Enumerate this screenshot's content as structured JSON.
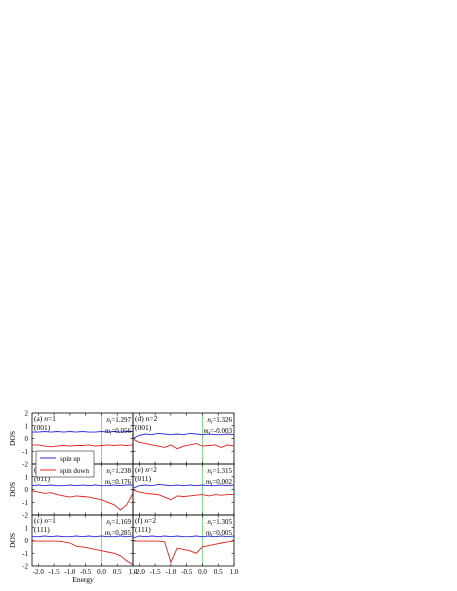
{
  "chart_data": [
    {
      "type": "line",
      "panel": "a",
      "title": "(a) n=1",
      "subtitle": "(001)",
      "annotations": [
        "n_t=1.297",
        "m_t=0.056"
      ],
      "xlabel": "",
      "ylabel": "DOS",
      "xlim": [
        -2.2,
        1.0
      ],
      "ylim": [
        -2,
        2
      ],
      "series": [
        {
          "name": "spin up",
          "x": [
            -2.2,
            -2.0,
            -1.8,
            -1.6,
            -1.4,
            -1.2,
            -1.0,
            -0.8,
            -0.6,
            -0.4,
            -0.2,
            0.0,
            0.2,
            0.4,
            0.6,
            0.8,
            1.0
          ],
          "y": [
            0.5,
            0.5,
            0.55,
            0.5,
            0.55,
            0.5,
            0.55,
            0.5,
            0.55,
            0.5,
            0.5,
            0.55,
            0.5,
            0.55,
            0.5,
            0.55,
            0.55
          ]
        },
        {
          "name": "spin down",
          "x": [
            -2.2,
            -2.0,
            -1.8,
            -1.6,
            -1.4,
            -1.2,
            -1.0,
            -0.8,
            -0.6,
            -0.4,
            -0.2,
            0.0,
            0.2,
            0.4,
            0.6,
            0.8,
            1.0
          ],
          "y": [
            -0.5,
            -0.5,
            -0.6,
            -0.65,
            -0.6,
            -0.55,
            -0.6,
            -0.55,
            -0.55,
            -0.5,
            -0.6,
            -0.55,
            -0.5,
            -0.55,
            -0.5,
            -0.55,
            -0.5
          ]
        }
      ]
    },
    {
      "type": "line",
      "panel": "b",
      "title": "(b) n=1",
      "subtitle": "(011)",
      "annotations": [
        "n_t=1.238",
        "m_t=0.176"
      ],
      "xlabel": "",
      "ylabel": "DOS",
      "xlim": [
        -2.2,
        1.0
      ],
      "ylim": [
        -2,
        2
      ],
      "series": [
        {
          "name": "spin up",
          "x": [
            -2.2,
            -2.0,
            -1.8,
            -1.6,
            -1.4,
            -1.2,
            -1.0,
            -0.8,
            -0.6,
            -0.4,
            -0.2,
            0.0,
            0.2,
            0.4,
            0.6,
            0.8,
            1.0
          ],
          "y": [
            0.3,
            0.35,
            0.3,
            0.35,
            0.3,
            0.3,
            0.35,
            0.3,
            0.35,
            0.3,
            0.35,
            0.3,
            0.3,
            0.35,
            0.3,
            0.35,
            0.35
          ]
        },
        {
          "name": "spin down",
          "x": [
            -2.2,
            -2.0,
            -1.8,
            -1.6,
            -1.4,
            -1.2,
            -1.0,
            -0.8,
            -0.6,
            -0.4,
            -0.2,
            0.0,
            0.2,
            0.4,
            0.6,
            0.8,
            1.0
          ],
          "y": [
            -0.1,
            -0.2,
            -0.3,
            -0.25,
            -0.4,
            -0.5,
            -0.6,
            -0.5,
            -0.55,
            -0.6,
            -0.7,
            -0.8,
            -1.0,
            -1.2,
            -1.6,
            -1.2,
            -0.3
          ]
        }
      ]
    },
    {
      "type": "line",
      "panel": "c",
      "title": "(c) n=1",
      "subtitle": "(111)",
      "annotations": [
        "n_t=1.169",
        "m_t=0.285"
      ],
      "xlabel": "Energy",
      "ylabel": "DOS",
      "xlim": [
        -2.2,
        1.0
      ],
      "ylim": [
        -2,
        2
      ],
      "series": [
        {
          "name": "spin up",
          "x": [
            -2.2,
            -2.0,
            -1.8,
            -1.6,
            -1.4,
            -1.2,
            -1.0,
            -0.8,
            -0.6,
            -0.4,
            -0.2,
            0.0,
            0.2,
            0.4,
            0.6,
            0.8,
            1.0
          ],
          "y": [
            0.3,
            0.3,
            0.35,
            0.3,
            0.35,
            0.3,
            0.3,
            0.35,
            0.3,
            0.35,
            0.3,
            0.35,
            0.3,
            0.3,
            0.35,
            0.3,
            0.35
          ]
        },
        {
          "name": "spin down",
          "x": [
            -2.2,
            -2.0,
            -1.8,
            -1.6,
            -1.4,
            -1.2,
            -1.0,
            -0.8,
            -0.6,
            -0.4,
            -0.2,
            0.0,
            0.2,
            0.4,
            0.6,
            0.8,
            1.0
          ],
          "y": [
            -0.05,
            -0.05,
            -0.05,
            -0.05,
            -0.05,
            -0.1,
            -0.2,
            -0.45,
            -0.5,
            -0.6,
            -0.7,
            -0.8,
            -0.9,
            -1.0,
            -1.2,
            -1.6,
            -1.9
          ]
        }
      ]
    },
    {
      "type": "line",
      "panel": "d",
      "title": "(d) n=2",
      "subtitle": "(001)",
      "annotations": [
        "n_t=1.326",
        "m_t=-0.003"
      ],
      "xlabel": "",
      "ylabel": "",
      "xlim": [
        -2.2,
        1.0
      ],
      "ylim": [
        -2,
        2
      ],
      "series": [
        {
          "name": "spin up",
          "x": [
            -2.2,
            -2.0,
            -1.8,
            -1.6,
            -1.4,
            -1.2,
            -1.0,
            -0.8,
            -0.6,
            -0.4,
            -0.2,
            0.0,
            0.2,
            0.4,
            0.6,
            0.8,
            1.0
          ],
          "y": [
            0.0,
            0.25,
            0.35,
            0.3,
            0.4,
            0.35,
            0.3,
            0.35,
            0.3,
            0.4,
            0.35,
            0.3,
            0.35,
            0.3,
            0.3,
            0.35,
            0.3
          ]
        },
        {
          "name": "spin down",
          "x": [
            -2.2,
            -2.0,
            -1.8,
            -1.6,
            -1.4,
            -1.2,
            -1.0,
            -0.8,
            -0.6,
            -0.4,
            -0.2,
            0.0,
            0.2,
            0.4,
            0.6,
            0.8,
            1.0
          ],
          "y": [
            -0.05,
            -0.3,
            -0.4,
            -0.5,
            -0.6,
            -0.7,
            -0.5,
            -0.8,
            -0.6,
            -0.5,
            -0.4,
            -0.6,
            -0.55,
            -0.5,
            -0.7,
            -0.5,
            -0.6
          ]
        }
      ]
    },
    {
      "type": "line",
      "panel": "e",
      "title": "(e) n=2",
      "subtitle": "(011)",
      "annotations": [
        "n_t=1.315",
        "m_t=0.002"
      ],
      "xlabel": "",
      "ylabel": "",
      "xlim": [
        -2.2,
        1.0
      ],
      "ylim": [
        -2,
        2
      ],
      "series": [
        {
          "name": "spin up",
          "x": [
            -2.2,
            -2.0,
            -1.8,
            -1.6,
            -1.4,
            -1.2,
            -1.0,
            -0.8,
            -0.6,
            -0.4,
            -0.2,
            0.0,
            0.2,
            0.4,
            0.6,
            0.8,
            1.0
          ],
          "y": [
            0.1,
            0.3,
            0.35,
            0.3,
            0.4,
            0.35,
            0.3,
            0.35,
            0.3,
            0.35,
            0.3,
            0.35,
            0.3,
            0.3,
            0.35,
            0.3,
            0.35
          ]
        },
        {
          "name": "spin down",
          "x": [
            -2.2,
            -2.0,
            -1.8,
            -1.6,
            -1.4,
            -1.2,
            -1.0,
            -0.8,
            -0.6,
            -0.4,
            -0.2,
            0.0,
            0.2,
            0.4,
            0.6,
            0.8,
            1.0
          ],
          "y": [
            -0.05,
            -0.2,
            -0.3,
            -0.35,
            -0.4,
            -0.6,
            -0.8,
            -0.5,
            -0.55,
            -0.5,
            -0.45,
            -0.4,
            -0.5,
            -0.4,
            -0.45,
            -0.4,
            -0.4
          ]
        }
      ]
    },
    {
      "type": "line",
      "panel": "f",
      "title": "(f) n=2",
      "subtitle": "(111)",
      "annotations": [
        "n_t=1.305",
        "m_t=0.005"
      ],
      "xlabel": "",
      "ylabel": "",
      "xlim": [
        -2.2,
        1.0
      ],
      "ylim": [
        -2,
        2
      ],
      "series": [
        {
          "name": "spin up",
          "x": [
            -2.2,
            -2.0,
            -1.8,
            -1.6,
            -1.4,
            -1.2,
            -1.0,
            -0.8,
            -0.6,
            -0.4,
            -0.2,
            0.0,
            0.2,
            0.4,
            0.6,
            0.8,
            1.0
          ],
          "y": [
            0.2,
            0.35,
            0.3,
            0.35,
            0.3,
            0.35,
            0.3,
            0.35,
            0.3,
            0.3,
            0.35,
            0.3,
            0.35,
            0.3,
            0.35,
            0.3,
            0.35
          ]
        },
        {
          "name": "spin down",
          "x": [
            -2.2,
            -2.0,
            -1.8,
            -1.6,
            -1.4,
            -1.2,
            -1.0,
            -0.8,
            -0.6,
            -0.4,
            -0.2,
            0.0,
            0.2,
            0.4,
            0.6,
            0.8,
            1.0
          ],
          "y": [
            -0.05,
            -0.05,
            -0.05,
            -0.05,
            -0.05,
            -0.1,
            -1.7,
            -0.6,
            -0.7,
            -0.8,
            -1.0,
            -0.5,
            -0.4,
            -0.3,
            -0.2,
            -0.1,
            -0.05
          ]
        }
      ]
    }
  ],
  "legend": {
    "items": [
      "spin up",
      "spin down"
    ]
  },
  "axis": {
    "xticks": [
      "-2.0",
      "-1.5",
      "-1.0",
      "-0.5",
      "0.0",
      "0.5",
      "1.0"
    ],
    "yticks_top": [
      "2",
      "1",
      "0",
      "-1",
      "-2"
    ],
    "yticks_mid": [
      "1",
      "0",
      "-1",
      "-2"
    ],
    "yticks_bot": [
      "1",
      "0",
      "-1",
      "-2"
    ]
  },
  "colors": {
    "spin_up": "#2b2bd8",
    "spin_down": "#e02020",
    "fermi": "#39c43c",
    "frame": "#000000"
  }
}
